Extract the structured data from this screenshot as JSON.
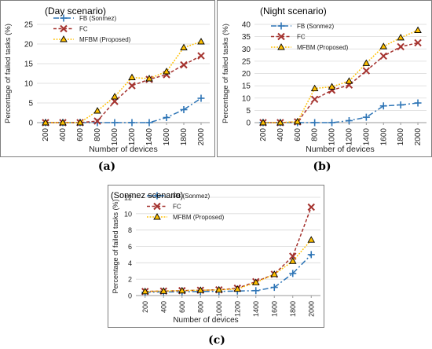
{
  "chart_data": [
    {
      "type": "line",
      "title": "(Day scenario)",
      "caption": "(a)",
      "xlabel": "Number of devices",
      "ylabel": "Percentage of failed tasks (%)",
      "categories": [
        "200",
        "400",
        "600",
        "800",
        "1000",
        "1200",
        "1400",
        "1600",
        "1800",
        "2000"
      ],
      "ylim": [
        0,
        25
      ],
      "yticks": [
        "0",
        "5",
        "10",
        "15",
        "20",
        "25"
      ],
      "grid": "horizontal",
      "legend": "top-left",
      "series": [
        {
          "name": "FB (Sonmez)",
          "color": "#2e75b6",
          "marker": "plus",
          "dash": "dashdot",
          "values": [
            0,
            0,
            0,
            0,
            0,
            0,
            0,
            1.3,
            3.3,
            6.2
          ]
        },
        {
          "name": "FC",
          "color": "#a5332f",
          "marker": "x",
          "dash": "dash",
          "values": [
            0,
            0,
            0,
            0.4,
            5.4,
            9.4,
            11.0,
            12.2,
            14.7,
            17.0
          ]
        },
        {
          "name": "MFBM (Proposed)",
          "color": "#ffc000",
          "marker": "triangle",
          "dash": "dot",
          "values": [
            0,
            0,
            0,
            3.0,
            6.6,
            11.5,
            11.2,
            13.0,
            19.1,
            20.6
          ]
        }
      ]
    },
    {
      "type": "line",
      "title": "(Night scenario)",
      "caption": "(b)",
      "xlabel": "Number of devices",
      "ylabel": "Percentage of failed tasks (%)",
      "categories": [
        "200",
        "400",
        "600",
        "800",
        "1000",
        "1200",
        "1400",
        "1600",
        "1800",
        "2000"
      ],
      "ylim": [
        0,
        40
      ],
      "yticks": [
        "0",
        "5",
        "10",
        "15",
        "20",
        "25",
        "30",
        "35",
        "40"
      ],
      "grid": "horizontal",
      "legend": "top-left",
      "series": [
        {
          "name": "FB (Sonmez)",
          "color": "#2e75b6",
          "marker": "plus",
          "dash": "dashdot",
          "values": [
            0,
            0,
            0,
            0,
            0,
            0.8,
            2.2,
            6.8,
            7.2,
            8.0
          ]
        },
        {
          "name": "FC",
          "color": "#a5332f",
          "marker": "x",
          "dash": "dash",
          "values": [
            0,
            0,
            0.3,
            9.5,
            13.2,
            15.3,
            21.1,
            27.1,
            30.9,
            32.5
          ]
        },
        {
          "name": "MFBM (Proposed)",
          "color": "#ffc000",
          "marker": "triangle",
          "dash": "dot",
          "values": [
            0,
            0,
            0.4,
            13.9,
            14.6,
            16.9,
            24.2,
            31.0,
            34.6,
            37.6
          ]
        }
      ]
    },
    {
      "type": "line",
      "title": "(Sonmez scenario)",
      "caption": "(c)",
      "xlabel": "Number of devices",
      "ylabel": "Percentage of failed tasks (%)",
      "categories": [
        "200",
        "400",
        "600",
        "800",
        "1000",
        "1200",
        "1400",
        "1600",
        "1800",
        "2000"
      ],
      "ylim": [
        0,
        12
      ],
      "yticks": [
        "0",
        "2",
        "4",
        "6",
        "8",
        "10",
        "12"
      ],
      "grid": "horizontal",
      "legend": "top-left",
      "series": [
        {
          "name": "FB (Sonmez)",
          "color": "#2e75b6",
          "marker": "plus",
          "dash": "dashdot",
          "values": [
            0.4,
            0.45,
            0.45,
            0.5,
            0.5,
            0.55,
            0.6,
            1.0,
            2.7,
            5.0
          ]
        },
        {
          "name": "FC",
          "color": "#a5332f",
          "marker": "x",
          "dash": "dash",
          "values": [
            0.5,
            0.55,
            0.6,
            0.65,
            0.7,
            0.9,
            1.7,
            2.6,
            4.8,
            10.8
          ]
        },
        {
          "name": "MFBM (Proposed)",
          "color": "#ffc000",
          "marker": "triangle",
          "dash": "dot",
          "values": [
            0.5,
            0.55,
            0.6,
            0.65,
            0.7,
            0.8,
            1.6,
            2.6,
            4.2,
            6.8
          ]
        }
      ]
    }
  ]
}
